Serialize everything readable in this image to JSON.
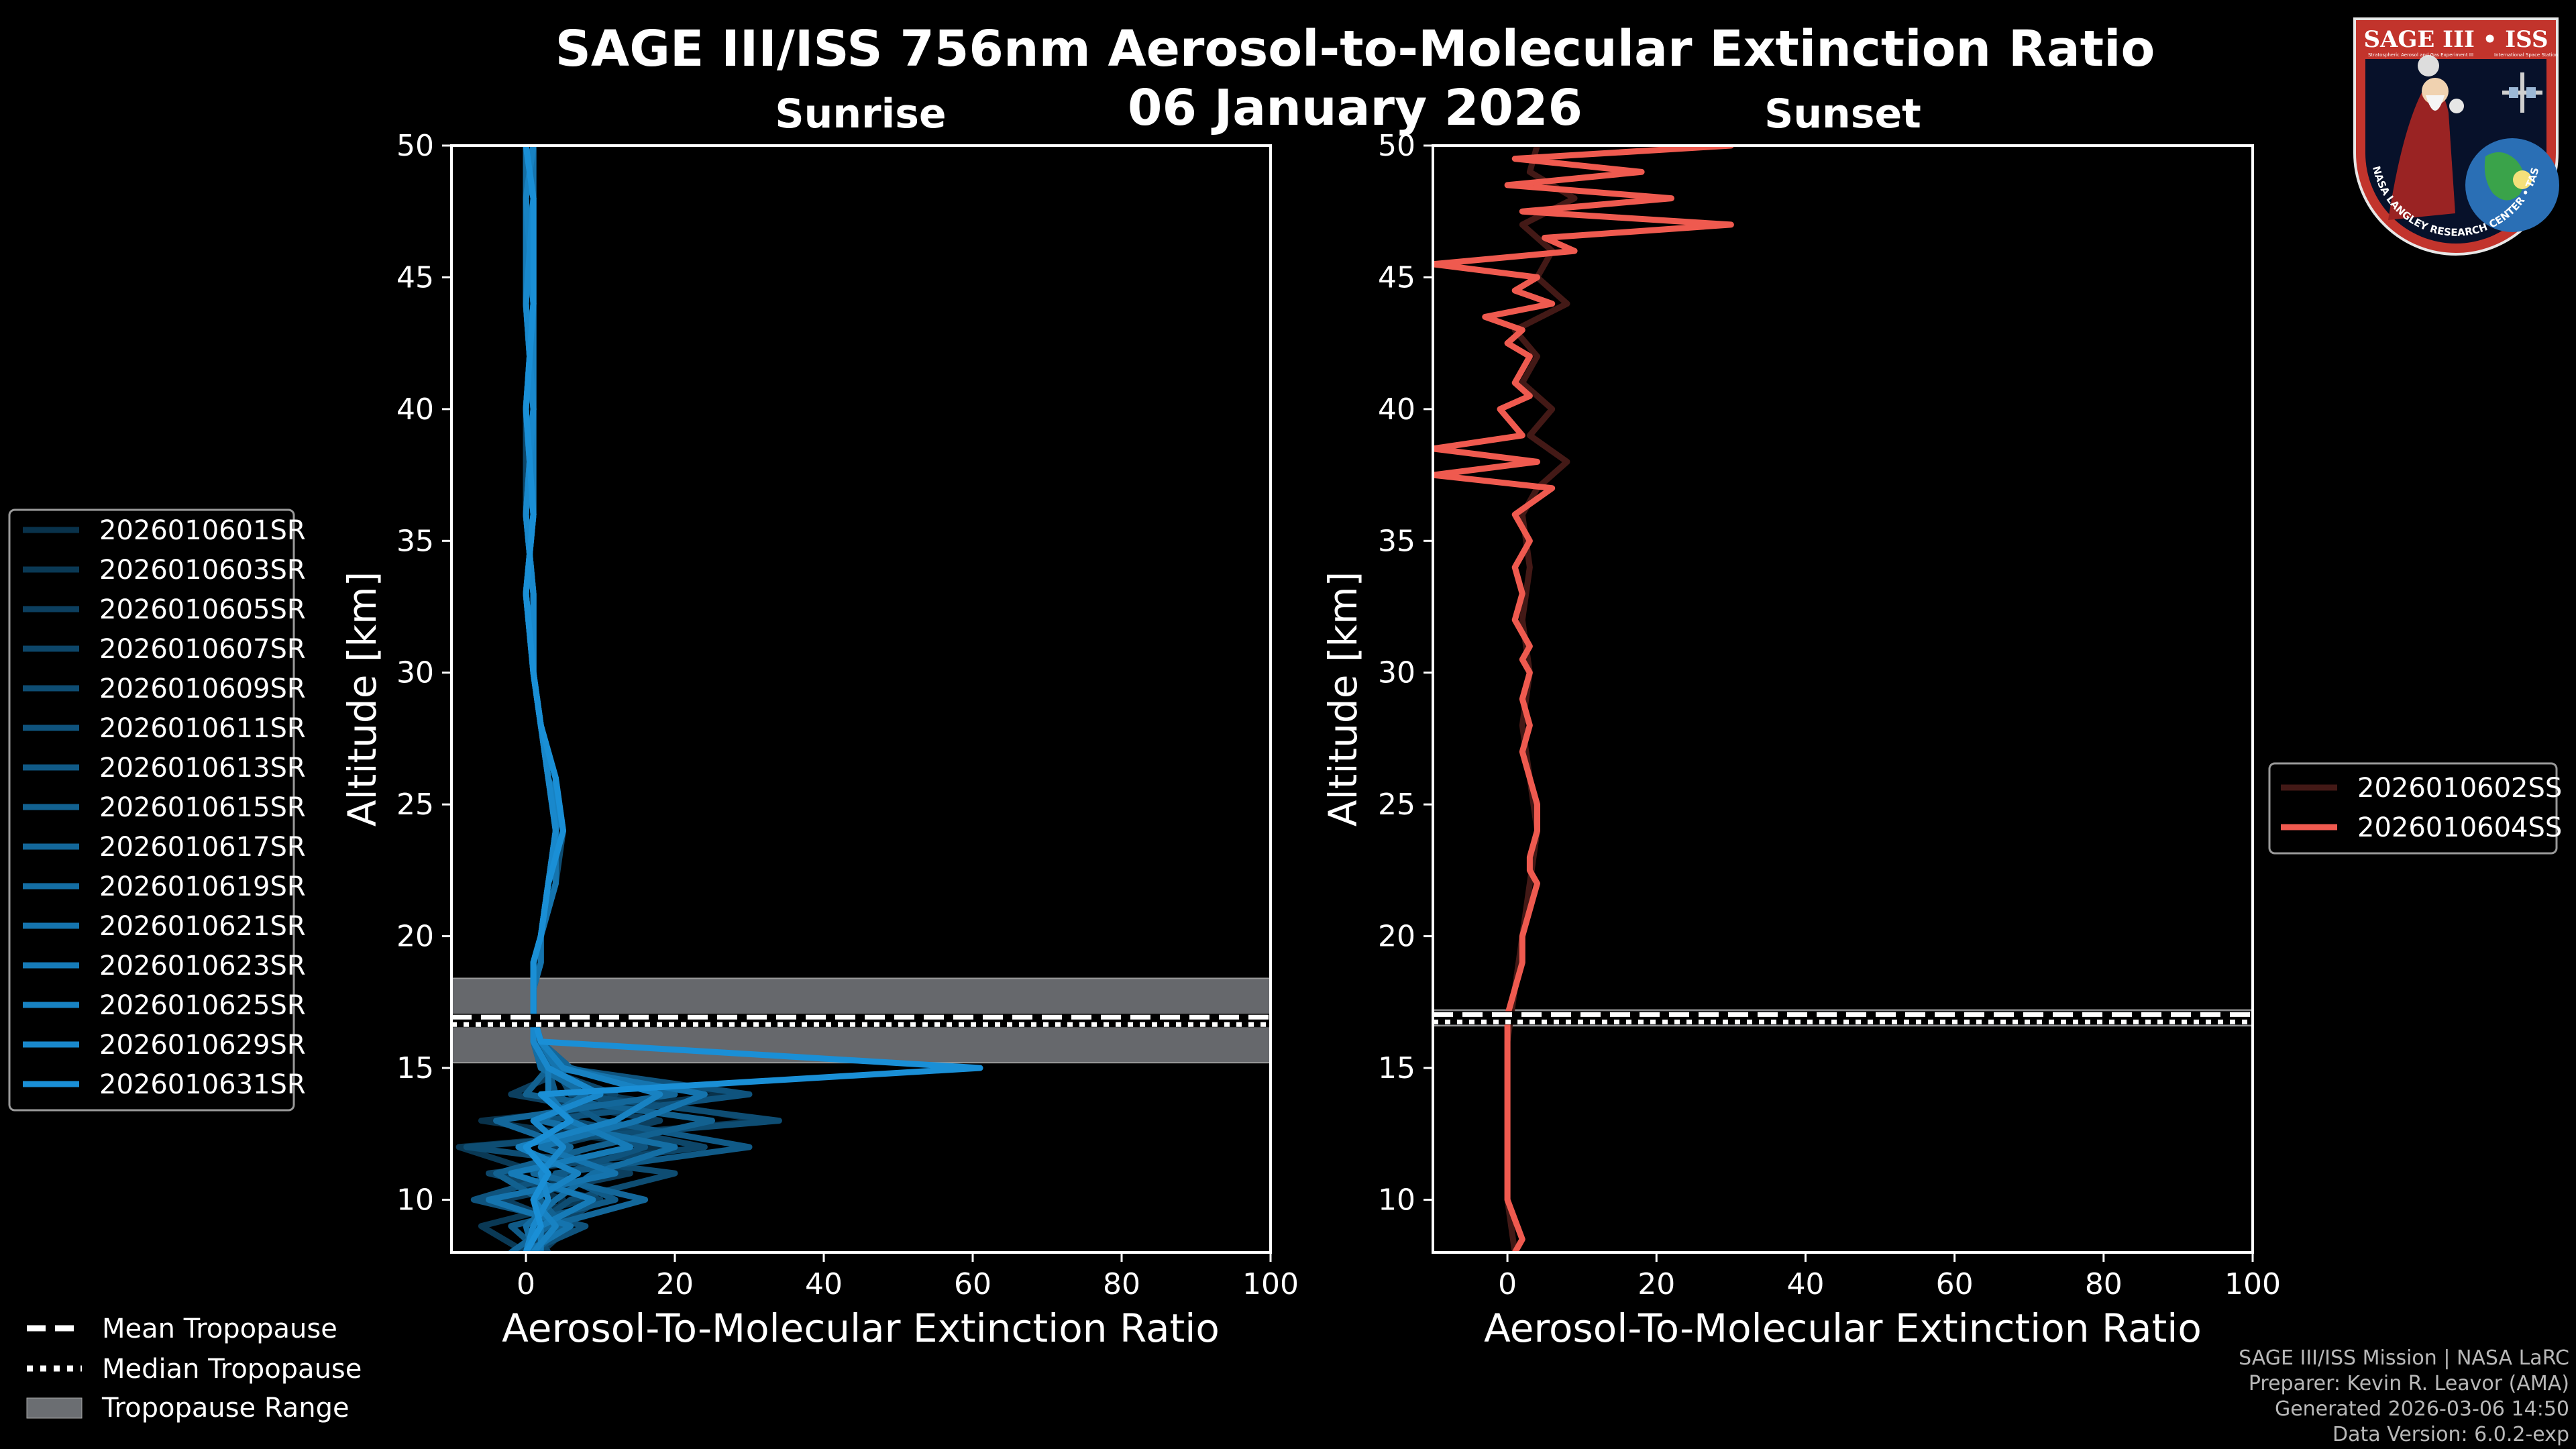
{
  "page": {
    "title_line1": "SAGE III/ISS 756nm Aerosol-to-Molecular Extinction Ratio",
    "title_line2": "06 January 2026",
    "credits": [
      "SAGE III/ISS Mission | NASA LaRC",
      "Preparer: Kevin R. Leavor (AMA)",
      "Generated 2026-03-06 14:50",
      "Data Version: 6.0.2-exp"
    ],
    "logo": {
      "top_text": "SAGE III • ISS",
      "sub_left": "Stratospheric Aerosol and Gas Experiment III",
      "sub_right": "International Space Station",
      "ring_text": "BALL • NASA LANGLEY RESEARCH CENTER • TAS-I • ESA"
    }
  },
  "colors": {
    "background": "#000000",
    "sunrise_line": "#1a8fd6",
    "sunset_line": "#ef5a4f",
    "tropopause_band": "#6b6e72"
  },
  "shared_legend": [
    {
      "label": "Mean Tropopause",
      "style": "dashed"
    },
    {
      "label": "Median Tropopause",
      "style": "dotted"
    },
    {
      "label": "Tropopause Range",
      "style": "patch"
    }
  ],
  "chart_data": [
    {
      "type": "line",
      "title": "Sunrise",
      "xlabel": "Aerosol-To-Molecular Extinction Ratio",
      "ylabel": "Altitude [km]",
      "xlim": [
        -10,
        100
      ],
      "ylim": [
        8,
        50
      ],
      "xticks": [
        0,
        20,
        40,
        60,
        80,
        100
      ],
      "yticks": [
        10,
        15,
        20,
        25,
        30,
        35,
        40,
        45,
        50
      ],
      "tropopause": {
        "mean": 16.8,
        "median": 16.8,
        "range": [
          15.2,
          18.4
        ]
      },
      "legend_position": "left",
      "series": [
        {
          "name": "2026010601SR",
          "y": [
            8,
            9,
            10,
            11,
            12,
            13,
            14,
            15,
            16,
            17,
            18,
            19,
            20,
            22,
            24,
            26,
            28,
            30,
            33,
            36,
            40,
            44,
            48,
            50
          ],
          "x": [
            1,
            3,
            5,
            -4,
            18,
            -6,
            28,
            4,
            2,
            1,
            1,
            1,
            2,
            3,
            4,
            3,
            2,
            1,
            0,
            1,
            0,
            1,
            1,
            0
          ]
        },
        {
          "name": "2026010603SR",
          "y": [
            8,
            9,
            10,
            11,
            12,
            13,
            14,
            15,
            16,
            17,
            18,
            19,
            20,
            22,
            24,
            26,
            28,
            30,
            33,
            36,
            40,
            44,
            48,
            50
          ],
          "x": [
            0,
            -6,
            8,
            2,
            -9,
            32,
            10,
            3,
            1,
            1,
            1,
            2,
            2,
            4,
            4,
            3,
            2,
            1,
            1,
            0,
            1,
            0,
            0,
            1
          ]
        },
        {
          "name": "2026010605SR",
          "y": [
            8,
            9,
            10,
            11,
            12,
            13,
            14,
            15,
            16,
            17,
            18,
            19,
            20,
            22,
            24,
            26,
            28,
            30,
            33,
            36,
            40,
            44,
            48,
            50
          ],
          "x": [
            2,
            6,
            -3,
            14,
            3,
            18,
            -2,
            6,
            2,
            1,
            1,
            1,
            2,
            3,
            5,
            4,
            2,
            1,
            0,
            1,
            0,
            1,
            0,
            1
          ]
        },
        {
          "name": "2026010607SR",
          "y": [
            8,
            9,
            10,
            11,
            12,
            13,
            14,
            15,
            16,
            17,
            18,
            19,
            20,
            22,
            24,
            26,
            28,
            30,
            33,
            36,
            40,
            44,
            48,
            50
          ],
          "x": [
            -1,
            4,
            10,
            -5,
            24,
            6,
            12,
            2,
            1,
            1,
            1,
            1,
            2,
            3,
            4,
            4,
            2,
            1,
            1,
            0,
            0,
            1,
            1,
            0
          ]
        },
        {
          "name": "2026010609SR",
          "y": [
            8,
            9,
            10,
            11,
            12,
            13,
            14,
            15,
            16,
            17,
            18,
            19,
            20,
            22,
            24,
            26,
            28,
            30,
            33,
            36,
            40,
            44,
            48,
            50
          ],
          "x": [
            3,
            1,
            6,
            20,
            -8,
            34,
            6,
            4,
            2,
            1,
            1,
            2,
            2,
            4,
            5,
            3,
            2,
            1,
            0,
            1,
            1,
            0,
            1,
            0
          ]
        },
        {
          "name": "2026010611SR",
          "y": [
            8,
            9,
            10,
            11,
            12,
            13,
            14,
            15,
            16,
            17,
            18,
            19,
            20,
            22,
            24,
            26,
            28,
            30,
            33,
            36,
            40,
            44,
            48,
            50
          ],
          "x": [
            0,
            8,
            -7,
            5,
            16,
            2,
            30,
            5,
            1,
            1,
            1,
            1,
            2,
            3,
            4,
            3,
            2,
            1,
            1,
            0,
            1,
            1,
            0,
            1
          ]
        },
        {
          "name": "2026010613SR",
          "y": [
            8,
            9,
            10,
            11,
            12,
            13,
            14,
            15,
            16,
            17,
            18,
            19,
            20,
            22,
            24,
            26,
            28,
            30,
            33,
            36,
            40,
            44,
            48,
            50
          ],
          "x": [
            2,
            -2,
            12,
            4,
            30,
            10,
            4,
            3,
            2,
            1,
            1,
            1,
            2,
            3,
            5,
            4,
            2,
            1,
            0,
            1,
            0,
            1,
            1,
            0
          ]
        },
        {
          "name": "2026010615SR",
          "y": [
            8,
            9,
            10,
            11,
            12,
            13,
            14,
            15,
            16,
            17,
            18,
            19,
            20,
            22,
            24,
            26,
            28,
            30,
            33,
            36,
            40,
            44,
            48,
            50
          ],
          "x": [
            1,
            5,
            2,
            -4,
            9,
            25,
            0,
            3,
            1,
            1,
            1,
            2,
            2,
            4,
            4,
            3,
            2,
            1,
            1,
            0,
            1,
            0,
            1,
            1
          ]
        },
        {
          "name": "2026010617SR",
          "y": [
            8,
            9,
            10,
            11,
            12,
            13,
            14,
            15,
            16,
            17,
            18,
            19,
            20,
            22,
            24,
            26,
            28,
            30,
            33,
            36,
            40,
            44,
            48,
            50
          ],
          "x": [
            -2,
            3,
            16,
            1,
            6,
            -4,
            20,
            6,
            2,
            1,
            1,
            1,
            2,
            3,
            4,
            4,
            2,
            1,
            0,
            1,
            0,
            1,
            0,
            1
          ]
        },
        {
          "name": "2026010619SR",
          "y": [
            8,
            9,
            10,
            11,
            12,
            13,
            14,
            15,
            16,
            17,
            18,
            19,
            20,
            22,
            24,
            26,
            28,
            30,
            33,
            36,
            40,
            44,
            48,
            50
          ],
          "x": [
            1,
            0,
            4,
            9,
            20,
            2,
            8,
            2,
            1,
            1,
            1,
            1,
            2,
            3,
            5,
            3,
            2,
            1,
            1,
            0,
            1,
            1,
            0,
            0
          ]
        },
        {
          "name": "2026010621SR",
          "y": [
            8,
            9,
            10,
            11,
            12,
            13,
            14,
            15,
            16,
            17,
            18,
            19,
            20,
            22,
            24,
            26,
            28,
            30,
            33,
            36,
            40,
            44,
            48,
            50
          ],
          "x": [
            0,
            6,
            -5,
            12,
            2,
            15,
            24,
            4,
            2,
            1,
            1,
            2,
            2,
            4,
            4,
            4,
            2,
            1,
            0,
            1,
            0,
            1,
            1,
            1
          ]
        },
        {
          "name": "2026010623SR",
          "y": [
            8,
            9,
            10,
            11,
            12,
            13,
            14,
            15,
            16,
            17,
            18,
            19,
            20,
            22,
            24,
            26,
            28,
            30,
            33,
            36,
            40,
            44,
            48,
            50
          ],
          "x": [
            2,
            2,
            9,
            -2,
            14,
            6,
            3,
            3,
            1,
            1,
            1,
            1,
            2,
            3,
            5,
            3,
            2,
            1,
            1,
            0,
            1,
            0,
            0,
            1
          ]
        },
        {
          "name": "2026010625SR",
          "y": [
            8,
            9,
            10,
            11,
            12,
            13,
            14,
            15,
            16,
            17,
            18,
            19,
            20,
            22,
            24,
            26,
            28,
            30,
            33,
            36,
            40,
            44,
            48,
            50
          ],
          "x": [
            1,
            4,
            1,
            7,
            -1,
            12,
            18,
            5,
            2,
            1,
            1,
            1,
            2,
            3,
            4,
            4,
            2,
            1,
            0,
            1,
            1,
            1,
            0,
            1
          ]
        },
        {
          "name": "2026010629SR",
          "y": [
            8,
            9,
            10,
            11,
            12,
            13,
            14,
            15,
            16,
            17,
            18,
            19,
            20,
            22,
            24,
            26,
            28,
            30,
            33,
            36,
            40,
            44,
            48,
            50
          ],
          "x": [
            0,
            1,
            3,
            2,
            5,
            1,
            10,
            3,
            1,
            1,
            1,
            1,
            2,
            3,
            4,
            3,
            2,
            1,
            1,
            0,
            1,
            0,
            1,
            0
          ]
        },
        {
          "name": "2026010631SR",
          "y": [
            8,
            9,
            10,
            11,
            12,
            13,
            14,
            15,
            16,
            17,
            18,
            19,
            20,
            22,
            24,
            26,
            28,
            30,
            33,
            36,
            40,
            44,
            48,
            50
          ],
          "x": [
            0,
            2,
            1,
            3,
            0,
            6,
            2,
            61,
            2,
            1,
            1,
            1,
            2,
            3,
            5,
            4,
            2,
            1,
            0,
            1,
            0,
            1,
            1,
            0
          ]
        }
      ]
    },
    {
      "type": "line",
      "title": "Sunset",
      "xlabel": "Aerosol-To-Molecular Extinction Ratio",
      "ylabel": "Altitude [km]",
      "xlim": [
        -10,
        100
      ],
      "ylim": [
        8,
        50
      ],
      "xticks": [
        0,
        20,
        40,
        60,
        80,
        100
      ],
      "yticks": [
        10,
        15,
        20,
        25,
        30,
        35,
        40,
        45,
        50
      ],
      "tropopause": {
        "mean": 16.9,
        "median": 16.9,
        "range": [
          16.6,
          17.2
        ]
      },
      "legend_position": "right",
      "series": [
        {
          "name": "2026010602SS",
          "y": [
            8,
            10,
            12,
            14,
            16,
            18,
            20,
            22,
            24,
            26,
            28,
            30,
            32,
            34,
            36,
            37,
            38,
            39,
            40,
            41,
            42,
            43,
            44,
            45,
            46,
            47,
            48,
            49,
            50
          ],
          "x": [
            1,
            0,
            0,
            0,
            0,
            1,
            2,
            3,
            4,
            3,
            2,
            3,
            2,
            3,
            2,
            4,
            8,
            3,
            6,
            2,
            4,
            1,
            8,
            4,
            6,
            2,
            9,
            3,
            4
          ]
        },
        {
          "name": "2026010604SS",
          "y": [
            8,
            8.5,
            10,
            12,
            14,
            16,
            17,
            18,
            19,
            20,
            21,
            22,
            22.5,
            23,
            24,
            25,
            26,
            27,
            28,
            29,
            30,
            30.5,
            31,
            32,
            33,
            34,
            35,
            35.5,
            36,
            37,
            37.5,
            38,
            38.5,
            39,
            40,
            40.5,
            41,
            42,
            42.5,
            43,
            43.5,
            44,
            44.5,
            45,
            45.5,
            46,
            46.5,
            47,
            47.5,
            48,
            48.5,
            49,
            49.5,
            50
          ],
          "x": [
            1,
            2,
            0,
            0,
            0,
            0,
            0,
            1,
            2,
            2,
            3,
            4,
            3,
            3,
            4,
            4,
            3,
            2,
            3,
            2,
            3,
            2,
            3,
            1,
            2,
            1,
            3,
            2,
            1,
            6,
            -10,
            4,
            -10,
            2,
            -1,
            3,
            1,
            3,
            0,
            2,
            -3,
            6,
            1,
            4,
            -10,
            9,
            5,
            30,
            2,
            22,
            0,
            18,
            1,
            30
          ]
        }
      ]
    }
  ]
}
